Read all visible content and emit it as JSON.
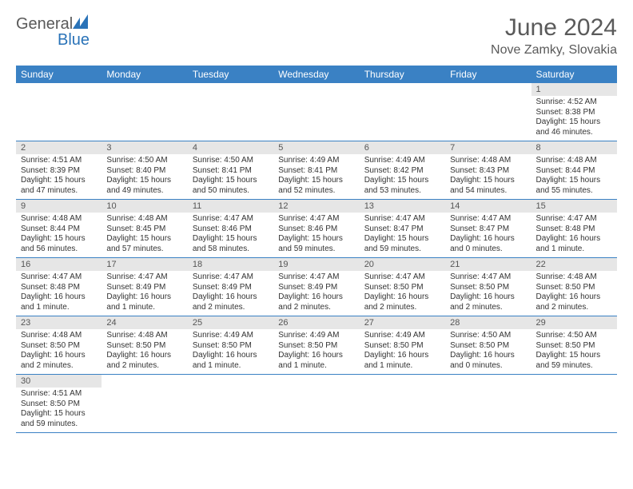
{
  "brand": {
    "word1": "General",
    "word2": "Blue"
  },
  "title": {
    "month": "June 2024",
    "location": "Nove Zamky, Slovakia"
  },
  "style": {
    "header_bg": "#3a81c4",
    "header_fg": "#ffffff",
    "daynum_bg": "#e6e6e6",
    "text_color": "#333333",
    "brand_gray": "#5a5a5a",
    "brand_blue": "#2a73b8",
    "font_family": "Arial",
    "month_fontsize": 30,
    "location_fontsize": 16,
    "header_fontsize": 12,
    "cell_fontsize": 10
  },
  "dow": [
    "Sunday",
    "Monday",
    "Tuesday",
    "Wednesday",
    "Thursday",
    "Friday",
    "Saturday"
  ],
  "weeks": [
    [
      null,
      null,
      null,
      null,
      null,
      null,
      {
        "d": "1",
        "sr": "4:52 AM",
        "ss": "8:38 PM",
        "dl": "15 hours and 46 minutes."
      }
    ],
    [
      {
        "d": "2",
        "sr": "4:51 AM",
        "ss": "8:39 PM",
        "dl": "15 hours and 47 minutes."
      },
      {
        "d": "3",
        "sr": "4:50 AM",
        "ss": "8:40 PM",
        "dl": "15 hours and 49 minutes."
      },
      {
        "d": "4",
        "sr": "4:50 AM",
        "ss": "8:41 PM",
        "dl": "15 hours and 50 minutes."
      },
      {
        "d": "5",
        "sr": "4:49 AM",
        "ss": "8:41 PM",
        "dl": "15 hours and 52 minutes."
      },
      {
        "d": "6",
        "sr": "4:49 AM",
        "ss": "8:42 PM",
        "dl": "15 hours and 53 minutes."
      },
      {
        "d": "7",
        "sr": "4:48 AM",
        "ss": "8:43 PM",
        "dl": "15 hours and 54 minutes."
      },
      {
        "d": "8",
        "sr": "4:48 AM",
        "ss": "8:44 PM",
        "dl": "15 hours and 55 minutes."
      }
    ],
    [
      {
        "d": "9",
        "sr": "4:48 AM",
        "ss": "8:44 PM",
        "dl": "15 hours and 56 minutes."
      },
      {
        "d": "10",
        "sr": "4:48 AM",
        "ss": "8:45 PM",
        "dl": "15 hours and 57 minutes."
      },
      {
        "d": "11",
        "sr": "4:47 AM",
        "ss": "8:46 PM",
        "dl": "15 hours and 58 minutes."
      },
      {
        "d": "12",
        "sr": "4:47 AM",
        "ss": "8:46 PM",
        "dl": "15 hours and 59 minutes."
      },
      {
        "d": "13",
        "sr": "4:47 AM",
        "ss": "8:47 PM",
        "dl": "15 hours and 59 minutes."
      },
      {
        "d": "14",
        "sr": "4:47 AM",
        "ss": "8:47 PM",
        "dl": "16 hours and 0 minutes."
      },
      {
        "d": "15",
        "sr": "4:47 AM",
        "ss": "8:48 PM",
        "dl": "16 hours and 1 minute."
      }
    ],
    [
      {
        "d": "16",
        "sr": "4:47 AM",
        "ss": "8:48 PM",
        "dl": "16 hours and 1 minute."
      },
      {
        "d": "17",
        "sr": "4:47 AM",
        "ss": "8:49 PM",
        "dl": "16 hours and 1 minute."
      },
      {
        "d": "18",
        "sr": "4:47 AM",
        "ss": "8:49 PM",
        "dl": "16 hours and 2 minutes."
      },
      {
        "d": "19",
        "sr": "4:47 AM",
        "ss": "8:49 PM",
        "dl": "16 hours and 2 minutes."
      },
      {
        "d": "20",
        "sr": "4:47 AM",
        "ss": "8:50 PM",
        "dl": "16 hours and 2 minutes."
      },
      {
        "d": "21",
        "sr": "4:47 AM",
        "ss": "8:50 PM",
        "dl": "16 hours and 2 minutes."
      },
      {
        "d": "22",
        "sr": "4:48 AM",
        "ss": "8:50 PM",
        "dl": "16 hours and 2 minutes."
      }
    ],
    [
      {
        "d": "23",
        "sr": "4:48 AM",
        "ss": "8:50 PM",
        "dl": "16 hours and 2 minutes."
      },
      {
        "d": "24",
        "sr": "4:48 AM",
        "ss": "8:50 PM",
        "dl": "16 hours and 2 minutes."
      },
      {
        "d": "25",
        "sr": "4:49 AM",
        "ss": "8:50 PM",
        "dl": "16 hours and 1 minute."
      },
      {
        "d": "26",
        "sr": "4:49 AM",
        "ss": "8:50 PM",
        "dl": "16 hours and 1 minute."
      },
      {
        "d": "27",
        "sr": "4:49 AM",
        "ss": "8:50 PM",
        "dl": "16 hours and 1 minute."
      },
      {
        "d": "28",
        "sr": "4:50 AM",
        "ss": "8:50 PM",
        "dl": "16 hours and 0 minutes."
      },
      {
        "d": "29",
        "sr": "4:50 AM",
        "ss": "8:50 PM",
        "dl": "15 hours and 59 minutes."
      }
    ],
    [
      {
        "d": "30",
        "sr": "4:51 AM",
        "ss": "8:50 PM",
        "dl": "15 hours and 59 minutes."
      },
      null,
      null,
      null,
      null,
      null,
      null
    ]
  ],
  "labels": {
    "sunrise": "Sunrise:",
    "sunset": "Sunset:",
    "daylight": "Daylight:"
  }
}
